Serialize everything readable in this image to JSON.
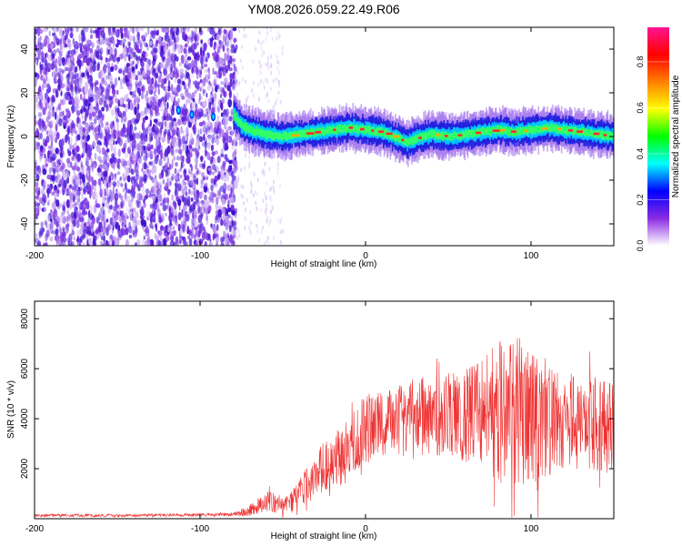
{
  "title": "YM08.2026.059.22.49.R06",
  "chart_data": [
    {
      "type": "heatmap",
      "xlabel": "Height of straight line (km)",
      "ylabel": "Frequency (Hz)",
      "xlim": [
        -200,
        150
      ],
      "ylim": [
        -50,
        50
      ],
      "xticks": [
        -200,
        -100,
        0,
        100
      ],
      "yticks": [
        -40,
        -20,
        0,
        20,
        40
      ],
      "colorbar": {
        "label": "Normalized spectral amplitude",
        "range": [
          0,
          0.95
        ],
        "ticks": [
          0.0,
          0.2,
          0.4,
          0.6,
          0.8
        ],
        "tick_labels": [
          "0.0",
          "0.2",
          "0.4",
          "0.6",
          "0.8"
        ],
        "colors": [
          "#ffffff",
          "#8a2be2",
          "#0000ff",
          "#00ffff",
          "#00ff00",
          "#ffff00",
          "#ff8000",
          "#ff0000",
          "#ff1493"
        ]
      },
      "features": {
        "noise_region_x": [
          -200,
          -78
        ],
        "sparse_region_x": [
          -78,
          -50
        ],
        "ridge": {
          "x": [
            -80,
            -75,
            -70,
            -60,
            -50,
            -40,
            -30,
            -20,
            -10,
            0,
            10,
            20,
            25,
            30,
            40,
            50,
            60,
            70,
            80,
            90,
            100,
            110,
            120,
            130,
            140,
            150
          ],
          "freq": [
            10,
            5,
            3,
            1,
            0,
            1,
            2,
            3,
            4,
            3,
            2,
            -1,
            -3,
            -1,
            1,
            0,
            1,
            2,
            3,
            2,
            3,
            4,
            3,
            2,
            1,
            0
          ]
        },
        "isolated_blobs": [
          {
            "x": -113,
            "freq": 12
          },
          {
            "x": -105,
            "freq": 10
          },
          {
            "x": -92,
            "freq": 9
          }
        ]
      }
    },
    {
      "type": "line",
      "color": "#ee3333",
      "xlabel": "Height of straight line (km)",
      "ylabel": "SNR (10 * v/v)",
      "xlim": [
        -200,
        150
      ],
      "ylim": [
        0,
        8700
      ],
      "xticks": [
        -100,
        0,
        100
      ],
      "yticks": [
        2000,
        4000,
        6000,
        8000
      ],
      "x": [
        -200,
        -180,
        -160,
        -140,
        -120,
        -100,
        -80,
        -75,
        -70,
        -65,
        -60,
        -55,
        -50,
        -45,
        -40,
        -35,
        -30,
        -25,
        -20,
        -15,
        -10,
        -5,
        0,
        5,
        10,
        15,
        20,
        25,
        30,
        35,
        40,
        45,
        50,
        55,
        60,
        65,
        70,
        75,
        80,
        85,
        90,
        95,
        100,
        105,
        110,
        115,
        120,
        125,
        130,
        135,
        140,
        145,
        150
      ],
      "values": [
        130,
        130,
        130,
        130,
        140,
        150,
        180,
        250,
        350,
        500,
        700,
        700,
        400,
        700,
        1000,
        1400,
        1800,
        2100,
        2300,
        2500,
        2800,
        3200,
        3600,
        3700,
        3800,
        3900,
        4000,
        4100,
        4000,
        4200,
        4300,
        4200,
        4300,
        4200,
        4100,
        4100,
        4200,
        4200,
        4300,
        4300,
        4200,
        4100,
        3800,
        3900,
        3900,
        4000,
        4000,
        3800,
        3900,
        3700,
        3800,
        3700,
        3700
      ],
      "spread": [
        60,
        60,
        60,
        60,
        60,
        60,
        80,
        150,
        250,
        300,
        400,
        500,
        400,
        500,
        600,
        800,
        900,
        1000,
        1100,
        1200,
        1200,
        1300,
        1400,
        1400,
        1400,
        1500,
        1500,
        1600,
        1700,
        1700,
        1700,
        1800,
        1800,
        1800,
        1900,
        2000,
        2200,
        2500,
        2800,
        3000,
        3200,
        3000,
        2800,
        2600,
        2400,
        2200,
        2100,
        2000,
        2000,
        1900,
        1900,
        1900,
        1800
      ]
    }
  ]
}
